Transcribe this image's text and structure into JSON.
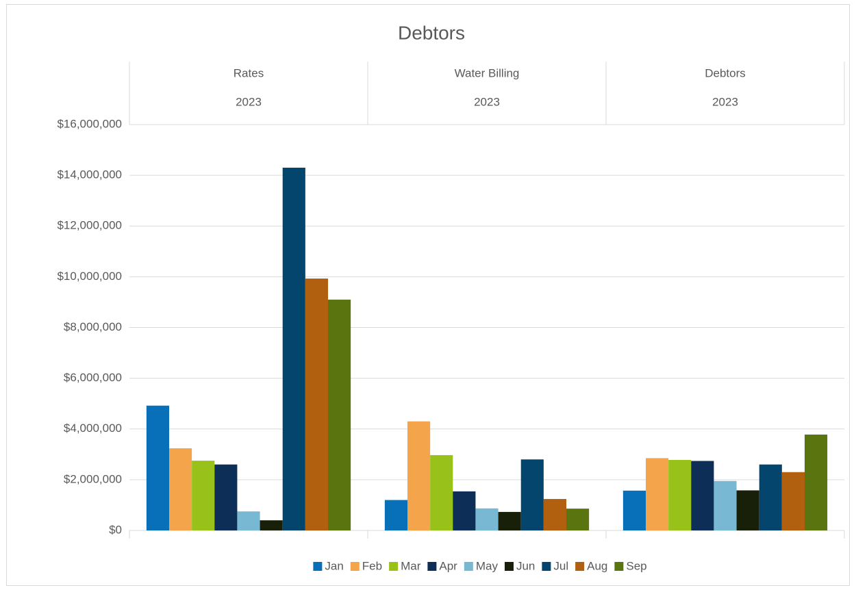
{
  "chart_data": {
    "type": "bar",
    "title": "Debtors",
    "categories": [
      "Rates",
      "Water Billing",
      "Debtors"
    ],
    "category_years": [
      "2023",
      "2023",
      "2023"
    ],
    "series": [
      {
        "name": "Jan",
        "color": "#0870b8",
        "values": [
          4920000,
          1200000,
          1570000
        ]
      },
      {
        "name": "Feb",
        "color": "#f4a44a",
        "values": [
          3240000,
          4300000,
          2850000
        ]
      },
      {
        "name": "Mar",
        "color": "#98c21a",
        "values": [
          2750000,
          2970000,
          2780000
        ]
      },
      {
        "name": "Apr",
        "color": "#0d2e57",
        "values": [
          2600000,
          1540000,
          2740000
        ]
      },
      {
        "name": "May",
        "color": "#79b8d2",
        "values": [
          750000,
          870000,
          1950000
        ]
      },
      {
        "name": "Jun",
        "color": "#18200a",
        "values": [
          400000,
          730000,
          1580000
        ]
      },
      {
        "name": "Jul",
        "color": "#03456d",
        "values": [
          14300000,
          2800000,
          2600000
        ]
      },
      {
        "name": "Aug",
        "color": "#b0600f",
        "values": [
          9930000,
          1240000,
          2300000
        ]
      },
      {
        "name": "Sep",
        "color": "#5a7510",
        "values": [
          9100000,
          860000,
          3780000
        ]
      }
    ],
    "ylim": [
      0,
      16000000
    ],
    "yticks": [
      {
        "value": 0,
        "label": "$0"
      },
      {
        "value": 2000000,
        "label": "$2,000,000"
      },
      {
        "value": 4000000,
        "label": "$4,000,000"
      },
      {
        "value": 6000000,
        "label": "$6,000,000"
      },
      {
        "value": 8000000,
        "label": "$8,000,000"
      },
      {
        "value": 10000000,
        "label": "$10,000,000"
      },
      {
        "value": 12000000,
        "label": "$12,000,000"
      },
      {
        "value": 14000000,
        "label": "$14,000,000"
      },
      {
        "value": 16000000,
        "label": "$16,000,000"
      }
    ],
    "grid": true,
    "legend": "bottom"
  }
}
